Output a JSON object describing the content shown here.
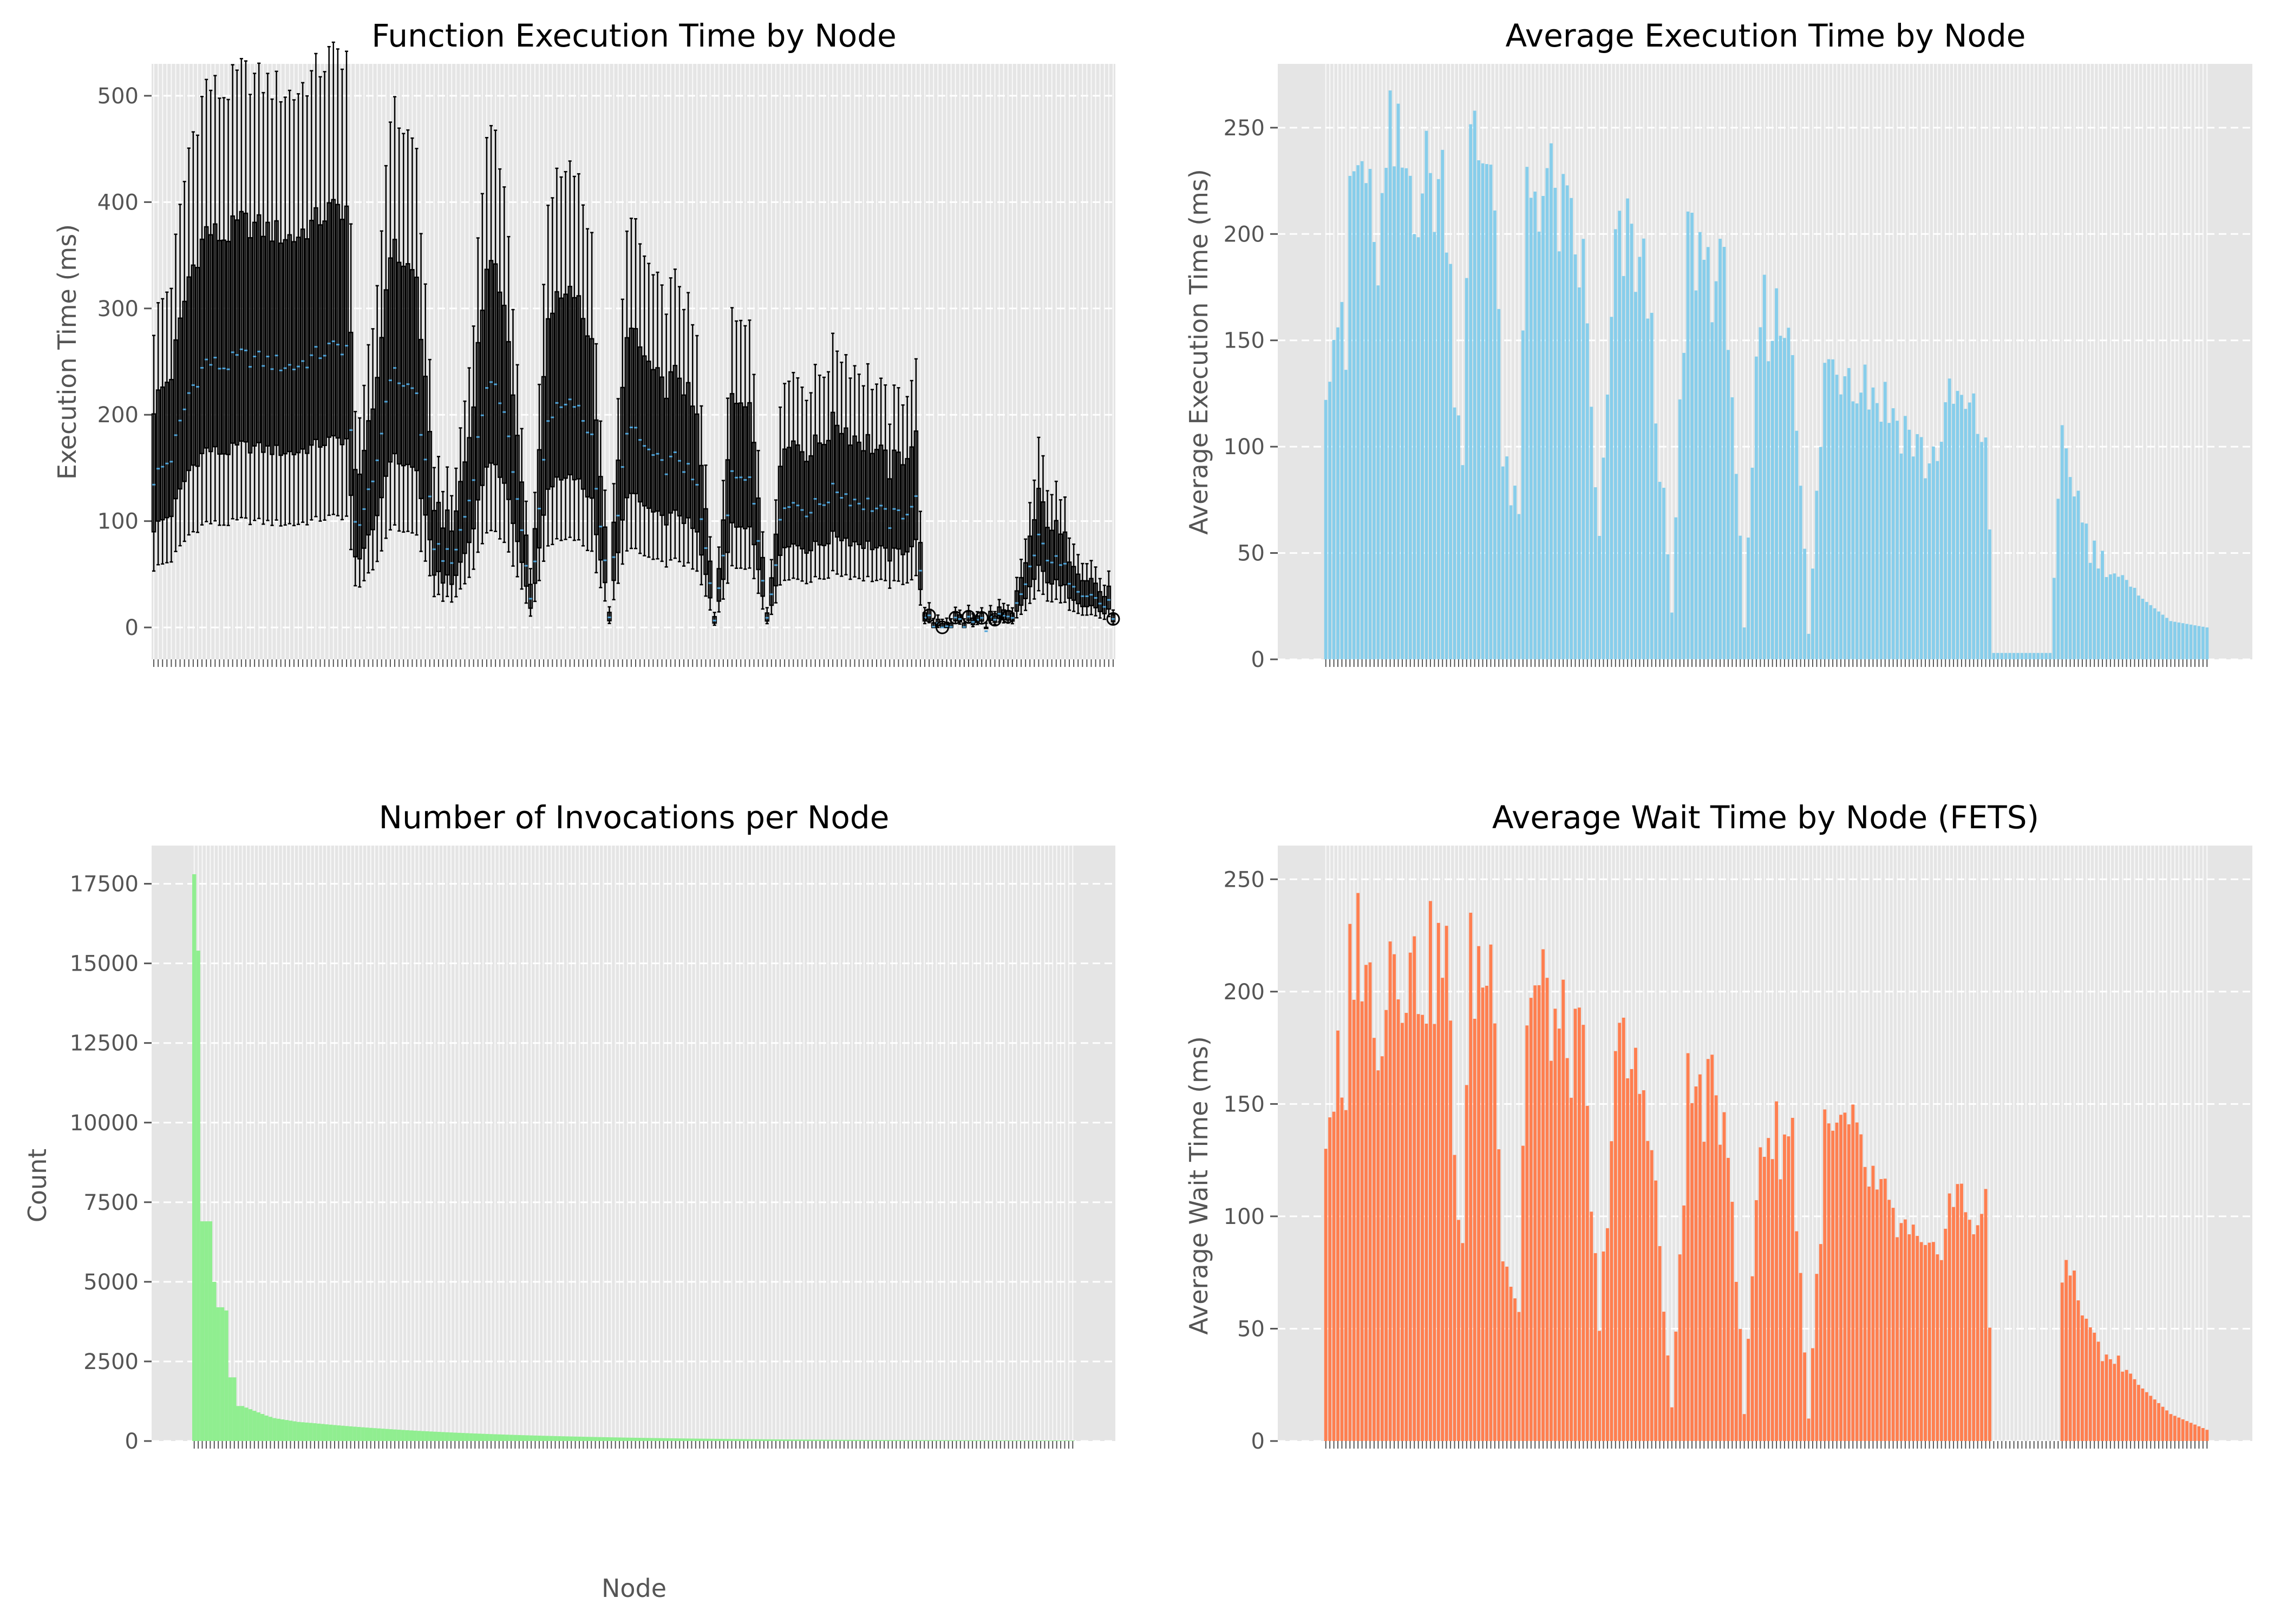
{
  "colors": {
    "panel_bg": "#e5e5e5",
    "grid": "#ffffff",
    "exec_bar": "#87ceeb",
    "count_bar": "#90ee90",
    "wait_bar": "#ff7f50",
    "box": "#000000",
    "median": "#4fa3d8",
    "text": "#555555"
  },
  "figure": {
    "x_label_node": "Node"
  },
  "chart_data": [
    {
      "id": "box",
      "type": "box",
      "title": "Function Execution Time by Node",
      "xlabel": "",
      "ylabel": "Execution Time (ms)",
      "ylim": [
        -30,
        530
      ],
      "yticks": [
        0,
        100,
        200,
        300,
        400,
        500
      ],
      "n_nodes": 220,
      "median_profile": [
        [
          0,
          140
        ],
        [
          4,
          160
        ],
        [
          8,
          220
        ],
        [
          12,
          250
        ],
        [
          16,
          245
        ],
        [
          20,
          255
        ],
        [
          26,
          250
        ],
        [
          32,
          245
        ],
        [
          40,
          262
        ],
        [
          44,
          265
        ],
        [
          46,
          95
        ],
        [
          50,
          130
        ],
        [
          54,
          240
        ],
        [
          60,
          220
        ],
        [
          64,
          80
        ],
        [
          68,
          60
        ],
        [
          72,
          120
        ],
        [
          76,
          230
        ],
        [
          80,
          210
        ],
        [
          86,
          25
        ],
        [
          90,
          200
        ],
        [
          96,
          210
        ],
        [
          100,
          180
        ],
        [
          104,
          15
        ],
        [
          108,
          190
        ],
        [
          112,
          170
        ],
        [
          116,
          150
        ],
        [
          120,
          160
        ],
        [
          124,
          130
        ],
        [
          128,
          10
        ],
        [
          132,
          140
        ],
        [
          136,
          150
        ],
        [
          140,
          12
        ],
        [
          144,
          120
        ],
        [
          150,
          110
        ],
        [
          156,
          130
        ],
        [
          160,
          120
        ],
        [
          164,
          115
        ],
        [
          168,
          100
        ],
        [
          174,
          118
        ],
        [
          176,
          3
        ],
        [
          180,
          5
        ],
        [
          186,
          5
        ],
        [
          196,
          5
        ],
        [
          202,
          80
        ],
        [
          206,
          60
        ],
        [
          210,
          45
        ],
        [
          214,
          30
        ],
        [
          219,
          15
        ]
      ],
      "ytick_labels": [
        "0",
        "100",
        "200",
        "300",
        "400",
        "500"
      ]
    },
    {
      "id": "avg",
      "type": "bar",
      "title": "Average Execution Time by Node",
      "xlabel": "",
      "ylabel": "Average Execution Time (ms)",
      "ylim": [
        0,
        280
      ],
      "yticks": [
        0,
        50,
        100,
        150,
        200,
        250
      ],
      "n_nodes": 220,
      "value_profile": [
        [
          0,
          155
        ],
        [
          3,
          180
        ],
        [
          5,
          148
        ],
        [
          6,
          245
        ],
        [
          10,
          255
        ],
        [
          12,
          198
        ],
        [
          14,
          225
        ],
        [
          16,
          260
        ],
        [
          22,
          248
        ],
        [
          30,
          244
        ],
        [
          32,
          150
        ],
        [
          34,
          110
        ],
        [
          36,
          260
        ],
        [
          42,
          262
        ],
        [
          44,
          100
        ],
        [
          48,
          72
        ],
        [
          50,
          245
        ],
        [
          54,
          248
        ],
        [
          58,
          230
        ],
        [
          64,
          200
        ],
        [
          68,
          60
        ],
        [
          72,
          205
        ],
        [
          76,
          215
        ],
        [
          80,
          190
        ],
        [
          86,
          22
        ],
        [
          90,
          215
        ],
        [
          94,
          210
        ],
        [
          100,
          185
        ],
        [
          104,
          15
        ],
        [
          108,
          180
        ],
        [
          112,
          175
        ],
        [
          116,
          175
        ],
        [
          120,
          12
        ],
        [
          124,
          150
        ],
        [
          130,
          155
        ],
        [
          136,
          140
        ],
        [
          140,
          130
        ],
        [
          144,
          120
        ],
        [
          150,
          100
        ],
        [
          156,
          135
        ],
        [
          160,
          125
        ],
        [
          164,
          118
        ],
        [
          166,
          3
        ],
        [
          180,
          3
        ],
        [
          183,
          108
        ],
        [
          186,
          92
        ],
        [
          190,
          58
        ],
        [
          196,
          45
        ],
        [
          202,
          30
        ],
        [
          210,
          18
        ],
        [
          219,
          15
        ]
      ],
      "ytick_labels": [
        "0",
        "50",
        "100",
        "150",
        "200",
        "250"
      ]
    },
    {
      "id": "count",
      "type": "bar",
      "title": "Number of Invocations per Node",
      "xlabel": "Node",
      "ylabel": "Count",
      "ylim": [
        0,
        18700
      ],
      "yticks": [
        0,
        2500,
        5000,
        7500,
        10000,
        12500,
        15000,
        17500
      ],
      "n_nodes": 220,
      "leading_values": [
        17800,
        15400,
        6900,
        6900,
        6900,
        5000,
        4200,
        4200,
        4100,
        2000,
        2000,
        1100,
        1100,
        1050,
        1000,
        950,
        900,
        850,
        800,
        760,
        720,
        700,
        680,
        660,
        640,
        620,
        600,
        590,
        580,
        570
      ],
      "tail": {
        "from_value": 560,
        "to_value": 8,
        "decay": 0.022
      },
      "ytick_labels": [
        "0",
        "2500",
        "5000",
        "7500",
        "10000",
        "12500",
        "15000",
        "17500"
      ]
    },
    {
      "id": "wait",
      "type": "bar",
      "title": "Average Wait Time by Node (FETS)",
      "xlabel": "",
      "ylabel": "Average Wait Time (ms)",
      "ylim": [
        0,
        265
      ],
      "yticks": [
        0,
        50,
        100,
        150,
        200,
        250
      ],
      "n_nodes": 220,
      "value_profile": [
        [
          0,
          153
        ],
        [
          3,
          180
        ],
        [
          5,
          145
        ],
        [
          6,
          240
        ],
        [
          10,
          248
        ],
        [
          12,
          190
        ],
        [
          14,
          215
        ],
        [
          16,
          245
        ],
        [
          22,
          228
        ],
        [
          30,
          235
        ],
        [
          32,
          140
        ],
        [
          34,
          100
        ],
        [
          36,
          230
        ],
        [
          42,
          232
        ],
        [
          44,
          95
        ],
        [
          48,
          65
        ],
        [
          50,
          215
        ],
        [
          54,
          218
        ],
        [
          58,
          200
        ],
        [
          64,
          185
        ],
        [
          68,
          50
        ],
        [
          72,
          190
        ],
        [
          76,
          180
        ],
        [
          80,
          170
        ],
        [
          86,
          15
        ],
        [
          90,
          170
        ],
        [
          94,
          168
        ],
        [
          100,
          160
        ],
        [
          104,
          12
        ],
        [
          108,
          150
        ],
        [
          112,
          148
        ],
        [
          116,
          150
        ],
        [
          120,
          10
        ],
        [
          124,
          145
        ],
        [
          130,
          150
        ],
        [
          136,
          125
        ],
        [
          140,
          110
        ],
        [
          144,
          100
        ],
        [
          150,
          85
        ],
        [
          156,
          120
        ],
        [
          160,
          112
        ],
        [
          164,
          108
        ],
        [
          166,
          0
        ],
        [
          182,
          0
        ],
        [
          183,
          90
        ],
        [
          186,
          78
        ],
        [
          190,
          50
        ],
        [
          196,
          40
        ],
        [
          202,
          25
        ],
        [
          210,
          12
        ],
        [
          219,
          5
        ]
      ],
      "ytick_labels": [
        "0",
        "50",
        "100",
        "150",
        "200",
        "250"
      ]
    }
  ]
}
